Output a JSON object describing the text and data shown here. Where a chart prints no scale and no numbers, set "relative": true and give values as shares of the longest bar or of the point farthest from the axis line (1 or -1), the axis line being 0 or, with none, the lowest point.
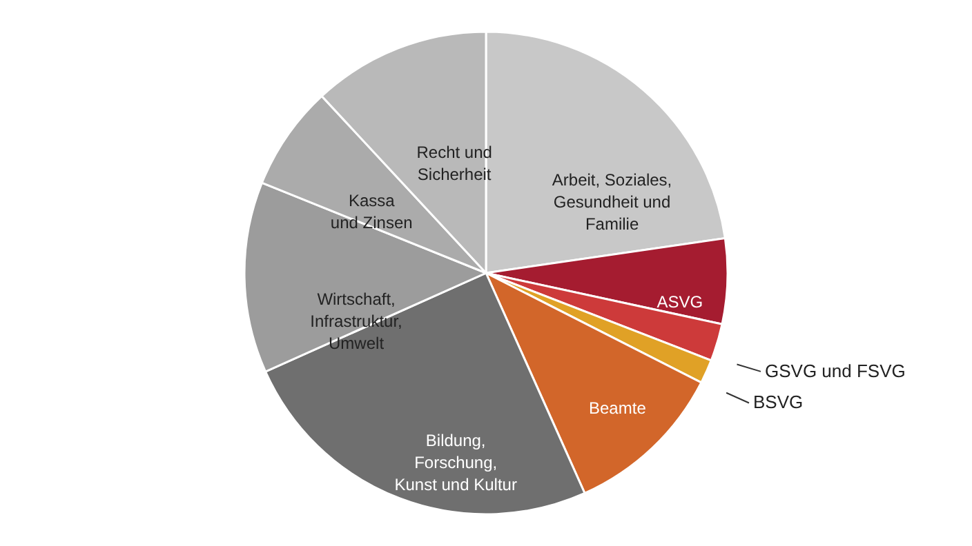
{
  "chart_data": {
    "type": "pie",
    "relative": true,
    "categories": [
      "Arbeit, Soziales,\nGesundheit und\n Familie",
      "ASVG",
      "GSVG und FSVG",
      "BSVG",
      "Beamte",
      "Bildung,\nForschung,\nKunst und Kultur",
      "Wirtschaft,\nInfrastruktur,\nUmwelt",
      "Kassa\nund Zinsen",
      "Recht und\nSicherheit"
    ],
    "values": [
      22.7,
      5.7,
      2.5,
      1.6,
      10.8,
      25.0,
      12.8,
      7.0,
      11.9
    ],
    "colors": [
      "#c8c8c8",
      "#a51c30",
      "#cd3a3a",
      "#e0a126",
      "#d2662a",
      "#6f6f6f",
      "#9c9c9c",
      "#ababab",
      "#b9b9b9"
    ],
    "data_labels": false
  }
}
